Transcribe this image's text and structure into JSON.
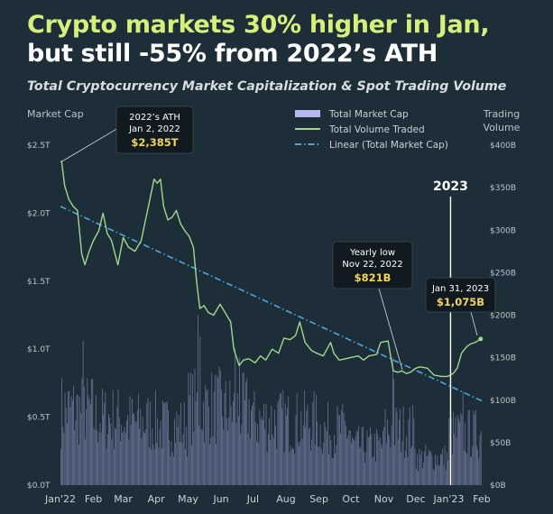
{
  "title_line1": "Crypto markets 30% higher in Jan,",
  "title_line2": "but still -55% from 2022’s ATH",
  "subtitle": "Total Cryptocurrency Market Capitalization & Spot Trading Volume",
  "colors": {
    "background": "#1d2e38",
    "market_cap_line": "#9fd88e",
    "volume_bars": "#b4b7f0",
    "trend_line": "#4ea6dc",
    "title_accent": "#d4f07a",
    "annotation_value": "#f3d45f"
  },
  "chart_data": {
    "type": "line",
    "left_axis_title": "Market Cap",
    "right_axis_title_line1": "Trading",
    "right_axis_title_line2": "Volume",
    "left_ticks": [
      "$0.0T",
      "$0.5T",
      "$1.0T",
      "$1.5T",
      "$2.0T",
      "$2.5T"
    ],
    "right_ticks": [
      "$0B",
      "$50B",
      "$100B",
      "$150B",
      "$200B",
      "$250B",
      "$300B",
      "$350B",
      "$400B"
    ],
    "x_ticks": [
      "Jan'22",
      "Feb",
      "Mar",
      "Apr",
      "May",
      "Jun",
      "Jul",
      "Aug",
      "Sep",
      "Oct",
      "Nov",
      "Dec",
      "Jan'23",
      "Feb"
    ],
    "left_ylim": [
      0,
      2.5
    ],
    "right_ylim": [
      0,
      400
    ],
    "left_unit": "T USD",
    "right_unit": "B USD",
    "legend": [
      {
        "label": "Total Market Cap",
        "kind": "bar"
      },
      {
        "label": "Total Volume Traded",
        "kind": "line"
      },
      {
        "label": "Linear (Total Market Cap)",
        "kind": "dashdot"
      }
    ],
    "legend_position": "top-center",
    "series": [
      {
        "name": "Total Volume Traded",
        "kind": "line",
        "axis": "left",
        "points": [
          [
            "2022-01-02",
            2.385
          ],
          [
            "2022-01-05",
            2.2
          ],
          [
            "2022-01-09",
            2.1
          ],
          [
            "2022-01-13",
            2.05
          ],
          [
            "2022-01-17",
            2.02
          ],
          [
            "2022-01-21",
            1.7
          ],
          [
            "2022-01-24",
            1.62
          ],
          [
            "2022-01-28",
            1.72
          ],
          [
            "2022-02-01",
            1.8
          ],
          [
            "2022-02-06",
            1.87
          ],
          [
            "2022-02-10",
            2.0
          ],
          [
            "2022-02-14",
            1.85
          ],
          [
            "2022-02-18",
            1.8
          ],
          [
            "2022-02-24",
            1.62
          ],
          [
            "2022-03-01",
            1.82
          ],
          [
            "2022-03-06",
            1.75
          ],
          [
            "2022-03-12",
            1.72
          ],
          [
            "2022-03-18",
            1.8
          ],
          [
            "2022-03-22",
            1.95
          ],
          [
            "2022-03-26",
            2.1
          ],
          [
            "2022-03-30",
            2.25
          ],
          [
            "2022-04-02",
            2.22
          ],
          [
            "2022-04-05",
            2.25
          ],
          [
            "2022-04-08",
            2.05
          ],
          [
            "2022-04-12",
            1.95
          ],
          [
            "2022-04-16",
            1.97
          ],
          [
            "2022-04-20",
            2.02
          ],
          [
            "2022-04-24",
            1.92
          ],
          [
            "2022-04-28",
            1.87
          ],
          [
            "2022-05-02",
            1.83
          ],
          [
            "2022-05-06",
            1.75
          ],
          [
            "2022-05-09",
            1.5
          ],
          [
            "2022-05-12",
            1.3
          ],
          [
            "2022-05-16",
            1.32
          ],
          [
            "2022-05-20",
            1.27
          ],
          [
            "2022-05-25",
            1.25
          ],
          [
            "2022-05-31",
            1.33
          ],
          [
            "2022-06-04",
            1.28
          ],
          [
            "2022-06-10",
            1.2
          ],
          [
            "2022-06-13",
            1.0
          ],
          [
            "2022-06-18",
            0.88
          ],
          [
            "2022-06-22",
            0.92
          ],
          [
            "2022-06-27",
            0.93
          ],
          [
            "2022-07-03",
            0.9
          ],
          [
            "2022-07-08",
            0.95
          ],
          [
            "2022-07-13",
            0.92
          ],
          [
            "2022-07-19",
            1.0
          ],
          [
            "2022-07-25",
            0.97
          ],
          [
            "2022-07-30",
            1.08
          ],
          [
            "2022-08-05",
            1.07
          ],
          [
            "2022-08-10",
            1.1
          ],
          [
            "2022-08-14",
            1.2
          ],
          [
            "2022-08-19",
            1.05
          ],
          [
            "2022-08-25",
            0.99
          ],
          [
            "2022-08-30",
            0.97
          ],
          [
            "2022-09-05",
            0.95
          ],
          [
            "2022-09-12",
            1.05
          ],
          [
            "2022-09-15",
            0.97
          ],
          [
            "2022-09-20",
            0.92
          ],
          [
            "2022-09-26",
            0.93
          ],
          [
            "2022-10-02",
            0.94
          ],
          [
            "2022-10-08",
            0.95
          ],
          [
            "2022-10-13",
            0.92
          ],
          [
            "2022-10-18",
            0.95
          ],
          [
            "2022-10-25",
            0.96
          ],
          [
            "2022-10-29",
            1.05
          ],
          [
            "2022-11-05",
            1.06
          ],
          [
            "2022-11-08",
            0.92
          ],
          [
            "2022-11-10",
            0.84
          ],
          [
            "2022-11-14",
            0.83
          ],
          [
            "2022-11-18",
            0.84
          ],
          [
            "2022-11-22",
            0.821
          ],
          [
            "2022-11-26",
            0.83
          ],
          [
            "2022-12-01",
            0.86
          ],
          [
            "2022-12-05",
            0.87
          ],
          [
            "2022-12-12",
            0.86
          ],
          [
            "2022-12-18",
            0.81
          ],
          [
            "2022-12-25",
            0.8
          ],
          [
            "2022-12-31",
            0.8
          ],
          [
            "2023-01-05",
            0.82
          ],
          [
            "2023-01-09",
            0.86
          ],
          [
            "2023-01-13",
            0.97
          ],
          [
            "2023-01-18",
            1.02
          ],
          [
            "2023-01-22",
            1.04
          ],
          [
            "2023-01-26",
            1.05
          ],
          [
            "2023-01-31",
            1.075
          ]
        ]
      },
      {
        "name": "Linear (Total Market Cap)",
        "kind": "trendline",
        "axis": "left",
        "points": [
          [
            "2022-01-01",
            2.05
          ],
          [
            "2023-02-01",
            0.62
          ]
        ]
      },
      {
        "name": "Total Market Cap",
        "kind": "bar",
        "axis": "right",
        "monthly_mean": [
          [
            "2022-01",
            95
          ],
          [
            "2022-02",
            85
          ],
          [
            "2022-03",
            80
          ],
          [
            "2022-04",
            75
          ],
          [
            "2022-05",
            100
          ],
          [
            "2022-06",
            95
          ],
          [
            "2022-07",
            82
          ],
          [
            "2022-08",
            80
          ],
          [
            "2022-09",
            70
          ],
          [
            "2022-10",
            50
          ],
          [
            "2022-11",
            70
          ],
          [
            "2022-12",
            35
          ],
          [
            "2023-01",
            65
          ]
        ],
        "notable_spikes": [
          [
            "2022-01-22",
            170
          ],
          [
            "2022-05-10",
            200
          ],
          [
            "2022-05-12",
            175
          ],
          [
            "2022-06-14",
            162
          ],
          [
            "2022-06-18",
            150
          ],
          [
            "2022-11-09",
            150
          ],
          [
            "2022-11-10",
            125
          ],
          [
            "2023-01-14",
            110
          ]
        ]
      }
    ],
    "annotations": [
      {
        "line1": "2022’s ATH",
        "line2": "Jan 2, 2022",
        "value": "$2,385T",
        "x": "2022-01-02",
        "y": 2.385
      },
      {
        "line1": "Yearly low",
        "line2": "Nov 22, 2022",
        "value": "$821B",
        "x": "2022-11-22",
        "y": 0.821
      },
      {
        "line1": "Jan 31, 2023",
        "line2": "",
        "value": "$1,075B",
        "x": "2023-01-31",
        "y": 1.075
      }
    ],
    "year_marker": {
      "label": "2023",
      "x": "2023-01-01"
    }
  }
}
